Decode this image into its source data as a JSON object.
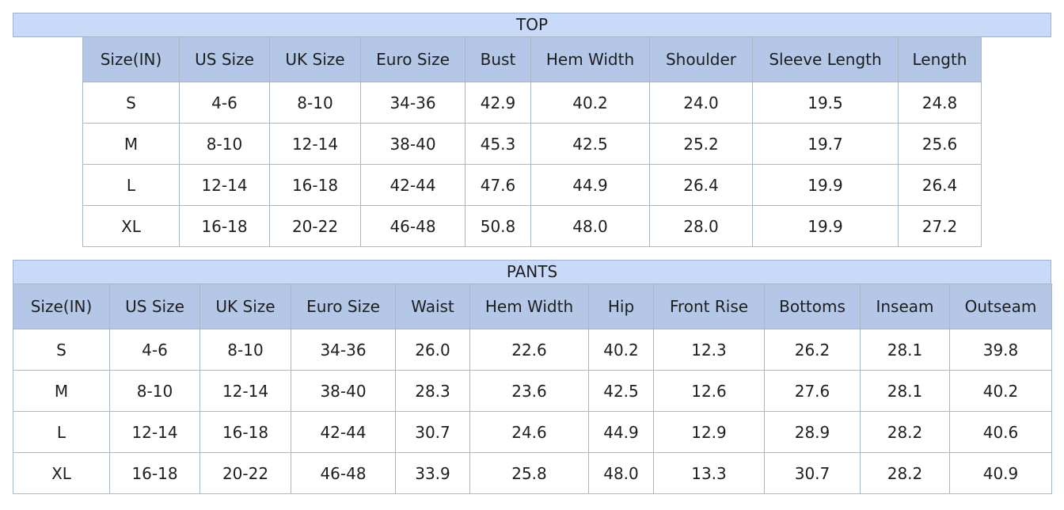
{
  "top": {
    "title": "TOP",
    "header": [
      "Size(IN)",
      "US Size",
      "UK Size",
      "Euro Size",
      "Bust",
      "Hem Width",
      "Shoulder",
      "Sleeve Length",
      "Length"
    ],
    "rows": [
      [
        "S",
        "4-6",
        "8-10",
        "34-36",
        "42.9",
        "40.2",
        "24.0",
        "19.5",
        "24.8"
      ],
      [
        "M",
        "8-10",
        "12-14",
        "38-40",
        "45.3",
        "42.5",
        "25.2",
        "19.7",
        "25.6"
      ],
      [
        "L",
        "12-14",
        "16-18",
        "42-44",
        "47.6",
        "44.9",
        "26.4",
        "19.9",
        "26.4"
      ],
      [
        "XL",
        "16-18",
        "20-22",
        "46-48",
        "50.8",
        "48.0",
        "28.0",
        "19.9",
        "27.2"
      ]
    ]
  },
  "pants": {
    "title": "PANTS",
    "header": [
      "Size(IN)",
      "US Size",
      "UK Size",
      "Euro Size",
      "Waist",
      "Hem Width",
      "Hip",
      "Front Rise",
      "Bottoms",
      "Inseam",
      "Outseam"
    ],
    "rows": [
      [
        "S",
        "4-6",
        "8-10",
        "34-36",
        "26.0",
        "22.6",
        "40.2",
        "12.3",
        "26.2",
        "28.1",
        "39.8"
      ],
      [
        "M",
        "8-10",
        "12-14",
        "38-40",
        "28.3",
        "23.6",
        "42.5",
        "12.6",
        "27.6",
        "28.1",
        "40.2"
      ],
      [
        "L",
        "12-14",
        "16-18",
        "42-44",
        "30.7",
        "24.6",
        "44.9",
        "12.9",
        "28.9",
        "28.2",
        "40.6"
      ],
      [
        "XL",
        "16-18",
        "20-22",
        "46-48",
        "33.9",
        "25.8",
        "48.0",
        "13.3",
        "30.7",
        "28.2",
        "40.9"
      ]
    ]
  }
}
